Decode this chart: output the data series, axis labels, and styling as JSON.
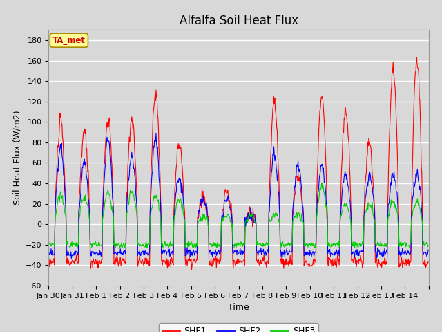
{
  "title": "Alfalfa Soil Heat Flux",
  "ylabel": "Soil Heat Flux (W/m2)",
  "xlabel": "Time",
  "ylim": [
    -60,
    190
  ],
  "yticks": [
    -60,
    -40,
    -20,
    0,
    20,
    40,
    60,
    80,
    100,
    120,
    140,
    160,
    180
  ],
  "bg_color": "#d8d8d8",
  "plot_bg_color": "#d8d8d8",
  "grid_color": "#ffffff",
  "title_fontsize": 12,
  "label_fontsize": 9,
  "tick_fontsize": 8,
  "shf1_color": "#ff0000",
  "shf2_color": "#0000ff",
  "shf3_color": "#00cc00",
  "annotation_text": "TA_met",
  "annotation_bg": "#ffff99",
  "annotation_fg": "#cc0000",
  "legend_labels": [
    "SHF1",
    "SHF2",
    "SHF3"
  ],
  "xtick_labels": [
    "Jan 30",
    "Jan 31",
    "Feb 1",
    "Feb 2",
    "Feb 3",
    "Feb 4",
    "Feb 5",
    "Feb 6",
    "Feb 7",
    "Feb 8",
    "Feb 9",
    "Feb 10",
    "Feb 11",
    "Feb 12",
    "Feb 13",
    "Feb 14"
  ],
  "day_peaks_shf1": [
    100,
    90,
    102,
    104,
    127,
    79,
    25,
    31,
    12,
    120,
    45,
    125,
    110,
    79,
    150,
    160
  ],
  "day_peaks_shf2": [
    75,
    60,
    83,
    65,
    83,
    47,
    23,
    24,
    10,
    68,
    57,
    57,
    50,
    48,
    48,
    48
  ],
  "day_peaks_shf3": [
    29,
    27,
    32,
    32,
    28,
    25,
    8,
    8,
    8,
    10,
    10,
    38,
    20,
    20,
    22,
    22
  ],
  "night_shf1": -37,
  "night_shf2": -28,
  "night_shf3": -20,
  "n_per_day": 48,
  "n_days": 16
}
